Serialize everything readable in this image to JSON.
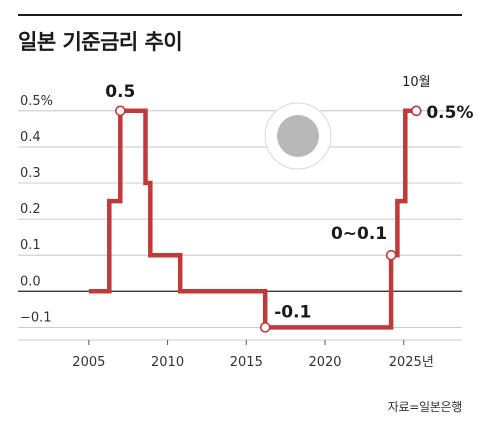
{
  "title": "일본 기준금리 추이",
  "source": "자료=일본은행",
  "colors": {
    "line": "#c0393b",
    "grid": "#bdbdbd",
    "zero": "#222222",
    "dot": "#b8b8b8"
  },
  "chart_data": {
    "type": "line",
    "step": true,
    "title": "일본 기준금리 추이",
    "xlim": [
      2000.5,
      2028.7
    ],
    "ylim": [
      -0.135,
      0.53
    ],
    "grid": true,
    "y_ticks": [
      0.5,
      0.4,
      0.3,
      0.2,
      0.1,
      0.0,
      -0.1
    ],
    "y_tick_labels": [
      "0.5%",
      "0.4",
      "0.3",
      "0.2",
      "0.1",
      "0.0",
      "−0.1"
    ],
    "x_ticks": [
      2005,
      2010,
      2015,
      2020,
      2025
    ],
    "x_tick_labels": [
      "2005",
      "2010",
      "2015",
      "2020",
      "2025년"
    ],
    "series": [
      {
        "x": [
          2005.0,
          2006.3,
          2006.3,
          2007.0,
          2007.0,
          2008.6,
          2008.6,
          2008.9,
          2008.9,
          2010.8,
          2010.8,
          2016.2,
          2016.2,
          2024.2,
          2024.2,
          2024.6,
          2024.6,
          2025.1,
          2025.1,
          2025.8
        ],
        "y": [
          0.0,
          0.0,
          0.25,
          0.25,
          0.5,
          0.5,
          0.3,
          0.3,
          0.1,
          0.1,
          0.0,
          0.0,
          -0.1,
          -0.1,
          0.1,
          0.1,
          0.25,
          0.25,
          0.5,
          0.5
        ]
      }
    ],
    "markers": [
      {
        "x": 2007.0,
        "y": 0.5
      },
      {
        "x": 2016.2,
        "y": -0.1
      },
      {
        "x": 2024.2,
        "y": 0.1
      },
      {
        "x": 2025.8,
        "y": 0.5
      }
    ],
    "annotations": [
      {
        "text": "0.5",
        "x": 2007.0,
        "y": 0.5,
        "pos": "above"
      },
      {
        "text": "-0.1",
        "x": 2016.2,
        "y": -0.1,
        "pos": "above-right"
      },
      {
        "text": "0~0.1",
        "x": 2024.2,
        "y": 0.1,
        "pos": "above-left"
      },
      {
        "text": "10월",
        "x": 2025.8,
        "y": 0.5,
        "pos": "above"
      },
      {
        "text": "0.5%",
        "x": 2025.8,
        "y": 0.5,
        "pos": "right"
      }
    ]
  }
}
